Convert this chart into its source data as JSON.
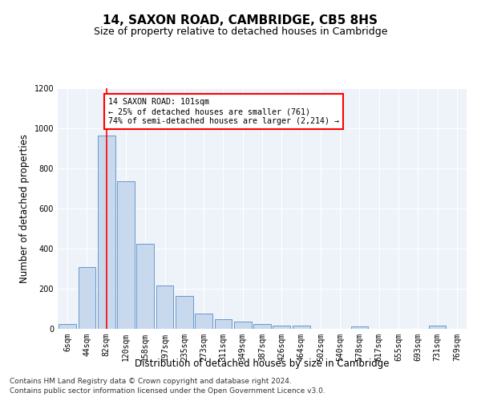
{
  "title": "14, SAXON ROAD, CAMBRIDGE, CB5 8HS",
  "subtitle": "Size of property relative to detached houses in Cambridge",
  "xlabel": "Distribution of detached houses by size in Cambridge",
  "ylabel": "Number of detached properties",
  "bar_labels": [
    "6sqm",
    "44sqm",
    "82sqm",
    "120sqm",
    "158sqm",
    "197sqm",
    "235sqm",
    "273sqm",
    "311sqm",
    "349sqm",
    "387sqm",
    "426sqm",
    "464sqm",
    "502sqm",
    "540sqm",
    "578sqm",
    "617sqm",
    "655sqm",
    "693sqm",
    "731sqm",
    "769sqm"
  ],
  "bar_heights": [
    25,
    310,
    965,
    735,
    425,
    215,
    165,
    75,
    48,
    35,
    25,
    18,
    18,
    0,
    0,
    12,
    0,
    0,
    0,
    15,
    0
  ],
  "bar_color": "#c9d9ed",
  "bar_edge_color": "#6699cc",
  "red_line_x": 2,
  "annotation_text": "14 SAXON ROAD: 101sqm\n← 25% of detached houses are smaller (761)\n74% of semi-detached houses are larger (2,214) →",
  "annotation_box_color": "white",
  "annotation_box_edge_color": "red",
  "ylim": [
    0,
    1200
  ],
  "yticks": [
    0,
    200,
    400,
    600,
    800,
    1000,
    1200
  ],
  "footer_line1": "Contains HM Land Registry data © Crown copyright and database right 2024.",
  "footer_line2": "Contains public sector information licensed under the Open Government Licence v3.0.",
  "bg_color": "#eef2f9",
  "grid_color": "white",
  "title_fontsize": 11,
  "subtitle_fontsize": 9,
  "xlabel_fontsize": 8.5,
  "ylabel_fontsize": 8.5,
  "tick_fontsize": 7,
  "footer_fontsize": 6.5
}
